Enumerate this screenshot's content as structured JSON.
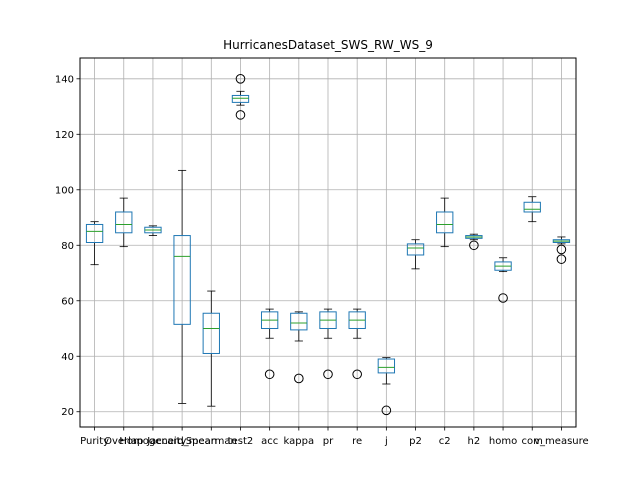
{
  "chart_data": {
    "type": "boxplot",
    "title": "HurricanesDataset_SWS_RW_WS_9",
    "xlabel": "",
    "ylabel": "",
    "ylim": [
      14.5,
      147.5
    ],
    "yticks": [
      20,
      40,
      60,
      80,
      100,
      120,
      140
    ],
    "grid": true,
    "box_color": "#1f77b4",
    "median_color": "#2ca02c",
    "series": [
      {
        "category": "Purity",
        "whislo": 73,
        "q1": 81,
        "med": 85,
        "q3": 87.5,
        "whishi": 88.5,
        "fliers": []
      },
      {
        "category": "Overlap",
        "whislo": 79.5,
        "q1": 84.5,
        "med": 87.5,
        "q3": 92,
        "whishi": 97,
        "fliers": []
      },
      {
        "category": "Homogeneity",
        "whislo": 83.5,
        "q1": 84.5,
        "med": 85.5,
        "q3": 86.5,
        "whishi": 87,
        "fliers": []
      },
      {
        "category": "Jaccard_mean",
        "whislo": 23,
        "q1": 51.5,
        "med": 76,
        "q3": 83.5,
        "whishi": 107,
        "fliers": []
      },
      {
        "category": "Spearman",
        "whislo": 22,
        "q1": 41,
        "med": 50,
        "q3": 55.5,
        "whishi": 63.5,
        "fliers": []
      },
      {
        "category": "test2",
        "whislo": 130.5,
        "q1": 131.5,
        "med": 133,
        "q3": 134,
        "whishi": 135.5,
        "fliers": [
          140,
          127
        ]
      },
      {
        "category": "acc",
        "whislo": 46.5,
        "q1": 50,
        "med": 53,
        "q3": 56,
        "whishi": 57,
        "fliers": [
          33.5
        ]
      },
      {
        "category": "kappa",
        "whislo": 45.5,
        "q1": 49.5,
        "med": 52,
        "q3": 55.5,
        "whishi": 56,
        "fliers": [
          32
        ]
      },
      {
        "category": "pr",
        "whislo": 46.5,
        "q1": 50,
        "med": 53,
        "q3": 56,
        "whishi": 57,
        "fliers": [
          33.5
        ]
      },
      {
        "category": "re",
        "whislo": 46.5,
        "q1": 50,
        "med": 53,
        "q3": 56,
        "whishi": 57,
        "fliers": [
          33.5
        ]
      },
      {
        "category": "j",
        "whislo": 30,
        "q1": 34,
        "med": 36,
        "q3": 39,
        "whishi": 39.5,
        "fliers": [
          20.5
        ]
      },
      {
        "category": "p2",
        "whislo": 71.5,
        "q1": 76.5,
        "med": 79,
        "q3": 80.5,
        "whishi": 82,
        "fliers": []
      },
      {
        "category": "c2",
        "whislo": 79.5,
        "q1": 84.5,
        "med": 87.5,
        "q3": 92,
        "whishi": 97,
        "fliers": []
      },
      {
        "category": "h2",
        "whislo": 82,
        "q1": 82.5,
        "med": 83,
        "q3": 83.5,
        "whishi": 84,
        "fliers": [
          80
        ]
      },
      {
        "category": "homo",
        "whislo": 70.5,
        "q1": 71,
        "med": 72.5,
        "q3": 74,
        "whishi": 75.5,
        "fliers": [
          61
        ]
      },
      {
        "category": "com",
        "whislo": 88.5,
        "q1": 92,
        "med": 93,
        "q3": 95.5,
        "whishi": 97.5,
        "fliers": []
      },
      {
        "category": "v_measure",
        "whislo": 80.5,
        "q1": 81,
        "med": 81.5,
        "q3": 82,
        "whishi": 83,
        "fliers": [
          78.5,
          75
        ]
      }
    ]
  }
}
